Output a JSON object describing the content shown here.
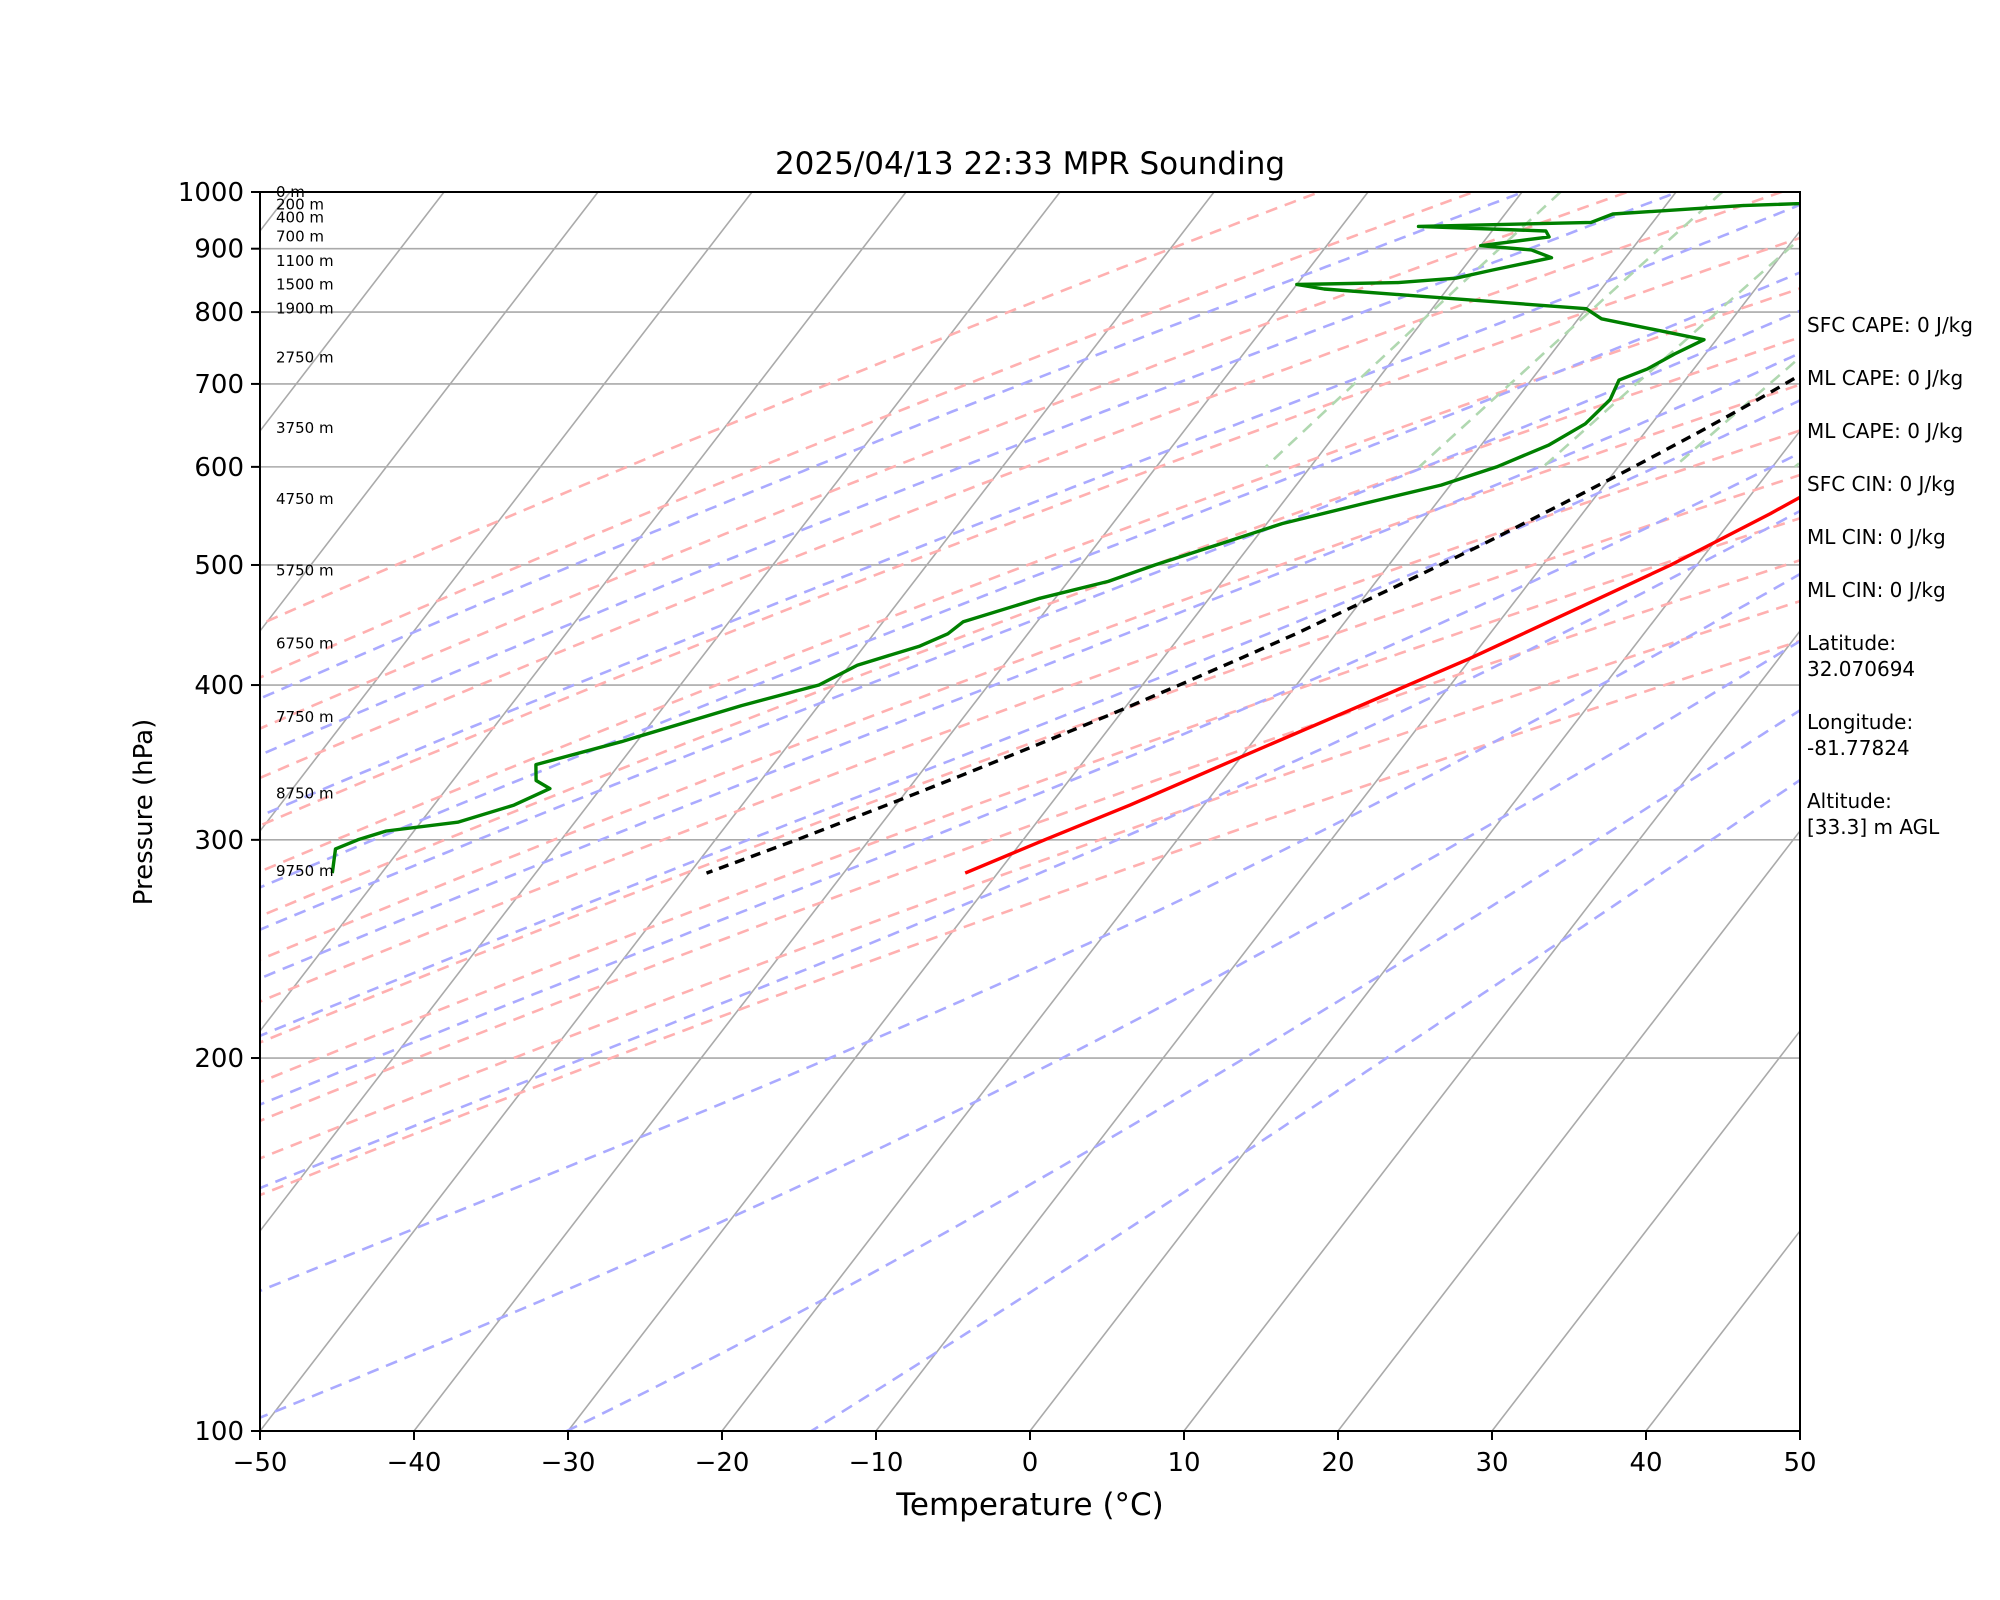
{
  "chart_data": {
    "type": "line",
    "subtype": "skew-t log-p",
    "title": "2025/04/13 22:33 MPR Sounding",
    "xlabel": "Temperature (°C)",
    "ylabel": "Pressure (hPa)",
    "xlim": [
      -50,
      50
    ],
    "ylim": [
      1000,
      100
    ],
    "y_scale": "log",
    "x_ticks": [
      "−50",
      "−40",
      "−30",
      "−20",
      "−10",
      "0",
      "10",
      "20",
      "30",
      "40",
      "50"
    ],
    "y_ticks": [
      "100",
      "200",
      "300",
      "400",
      "500",
      "600",
      "700",
      "800",
      "900",
      "1000"
    ],
    "grid": true,
    "background_lines": {
      "isotherms": {
        "color": "#aaaaaa",
        "from_c": -120,
        "to_c": 50,
        "step_c": 10
      },
      "dry_adiabats": {
        "color": "#ffb0b0",
        "theta_k": [
          230,
          240,
          250,
          260,
          270,
          280,
          290,
          300,
          310,
          320,
          330,
          340,
          350,
          360
        ]
      },
      "moist_adiabats": {
        "color": "#aaaaff",
        "surface_temp_c": [
          -30,
          -20,
          -10,
          0,
          5,
          10,
          15,
          20,
          25,
          30,
          35,
          40,
          45
        ]
      },
      "mixing_ratio_lines": {
        "color": "#b0d8b0",
        "dew_at_1000_c": [
          -27.5,
          -17,
          -8.5,
          0.5,
          8.8,
          13.8,
          16.5,
          23.2,
          27.8,
          32.5,
          34
        ],
        "top_hpa": 600
      }
    },
    "series": [
      {
        "key": "temperature",
        "color": "#ff0000",
        "p": [
          1000,
          985,
          960,
          930,
          900,
          860,
          830,
          800,
          775,
          750,
          720,
          690,
          660,
          630,
          600,
          550,
          500,
          460,
          420,
          380,
          350,
          320,
          300,
          282
        ],
        "t": [
          20,
          17,
          15,
          14.5,
          14.4,
          14.3,
          14.3,
          14.2,
          13.8,
          13,
          11.9,
          10.6,
          9.3,
          7.5,
          5.4,
          2.2,
          -1.7,
          -5.7,
          -10.1,
          -15.5,
          -20,
          -24.8,
          -28.6,
          -32.1
        ]
      },
      {
        "key": "dewpoint",
        "color": "#008000",
        "p": [
          1000,
          992,
          985,
          975,
          960,
          945,
          938,
          930,
          920,
          905,
          898,
          885,
          865,
          852,
          845,
          842,
          835,
          805,
          790,
          760,
          740,
          720,
          705,
          680,
          650,
          625,
          600,
          580,
          560,
          540,
          520,
          500,
          485,
          470,
          450,
          440,
          430,
          415,
          400,
          385,
          360,
          345,
          335,
          330,
          320,
          310,
          305,
          300,
          295,
          282
        ],
        "t": [
          0,
          -3,
          -5,
          -15,
          -23,
          -24,
          -35,
          -26.5,
          -26,
          -30,
          -26.5,
          -24.8,
          -28,
          -30,
          -33.5,
          -40,
          -38,
          -20,
          -18.5,
          -10.8,
          -12,
          -13,
          -14.3,
          -13.9,
          -14.3,
          -15.6,
          -17.9,
          -20.6,
          -24.8,
          -29,
          -32,
          -35.2,
          -37.4,
          -41,
          -44.8,
          -45.2,
          -46.4,
          -49.5,
          -51,
          -55,
          -61,
          -65.4,
          -64.6,
          -63.3,
          -64.8,
          -67.6,
          -71.8,
          -73.2,
          -74.2,
          -73.2
        ]
      },
      {
        "key": "parcel-profile",
        "color": "#000000",
        "dashed": true,
        "p": [
          1000,
          985,
          960,
          930,
          900,
          870,
          840,
          810,
          800,
          760,
          720,
          680,
          640,
          600,
          560,
          520,
          480,
          440,
          420,
          400,
          380,
          360,
          340,
          320,
          300,
          282
        ],
        "t": [
          21.8,
          20.3,
          17.9,
          14.8,
          11.7,
          8.4,
          5.1,
          1.8,
          0.9,
          -0.7,
          -2.4,
          -4.3,
          -6.5,
          -9,
          -11.8,
          -14.9,
          -18.5,
          -22.6,
          -25,
          -27.6,
          -30.4,
          -33.5,
          -36.9,
          -40.6,
          -44.7,
          -48.9
        ]
      }
    ],
    "height_labels": [
      {
        "p": 1000,
        "label": "0 m"
      },
      {
        "p": 977,
        "label": "200 m"
      },
      {
        "p": 954,
        "label": "400 m"
      },
      {
        "p": 921,
        "label": "700 m"
      },
      {
        "p": 880,
        "label": "1100 m"
      },
      {
        "p": 842,
        "label": "1500 m"
      },
      {
        "p": 805,
        "label": "1900 m"
      },
      {
        "p": 735,
        "label": "2750 m"
      },
      {
        "p": 645,
        "label": "3750 m"
      },
      {
        "p": 565,
        "label": "4750 m"
      },
      {
        "p": 495,
        "label": "5750 m"
      },
      {
        "p": 432,
        "label": "6750 m"
      },
      {
        "p": 377,
        "label": "7750 m"
      },
      {
        "p": 327,
        "label": "8750 m"
      },
      {
        "p": 283,
        "label": "9750 m"
      }
    ]
  },
  "info_panel": {
    "items": [
      "SFC CAPE: 0 J/kg",
      "ML CAPE: 0 J/kg",
      "ML CAPE: 0 J/kg",
      "SFC CIN: 0 J/kg",
      "ML CIN: 0 J/kg",
      "ML CIN: 0 J/kg",
      "Latitude:\n32.070694",
      "Longitude:\n-81.77824",
      "Altitude:\n[33.3] m AGL"
    ]
  }
}
